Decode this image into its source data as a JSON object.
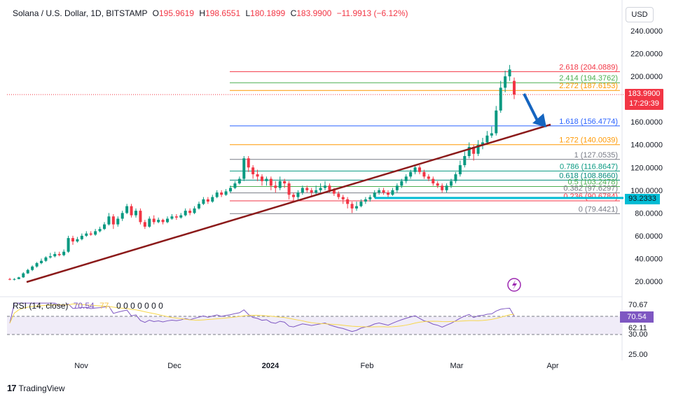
{
  "header": {
    "symbol": "Solana / U.S. Dollar, 1D, BITSTAMP",
    "o_label": "O",
    "o_value": "195.9619",
    "h_label": "H",
    "h_value": "198.6551",
    "l_label": "L",
    "l_value": "180.1899",
    "c_label": "C",
    "c_value": "183.9900",
    "change": "−11.9913 (−6.12%)"
  },
  "currency_button": "USD",
  "price_badge": {
    "price": "183.9900",
    "countdown": "17:29:39"
  },
  "cyan_badge": "93.2333",
  "rsi": {
    "label": "RSI (14, close)",
    "value": "70.54",
    "ma_value": "77.",
    "zeros": "0 0 0 0 0 0 0",
    "badge": "70.54",
    "axis_labels": [
      "70.67",
      "62.11",
      "30.00",
      "25.00"
    ]
  },
  "branding": "TradingView",
  "colors": {
    "up": "#089981",
    "down": "#f23645",
    "trend": "#8b1a1a",
    "rsi": "#7e57c2",
    "rsi_ma": "#f7d74b",
    "arrow": "#1565c0"
  },
  "chart_data": {
    "type": "candlestick",
    "title": "Solana / U.S. Dollar, 1D, BITSTAMP",
    "y_axis": {
      "min": 0,
      "max": 240,
      "scale": "linear",
      "ticks": [
        "240.0000",
        "220.0000",
        "200.0000",
        "180.0000",
        "160.0000",
        "140.0000",
        "120.0000",
        "100.0000",
        "80.0000",
        "60.0000",
        "40.0000",
        "20.0000"
      ]
    },
    "x_axis": {
      "labels": [
        "Nov",
        "Dec",
        "2024",
        "Feb",
        "Mar",
        "Apr"
      ]
    },
    "fib_levels": [
      {
        "label": "2.618 (204.0889)",
        "value": 204.0889,
        "color": "#f23645"
      },
      {
        "label": "2.414 (194.3762)",
        "value": 194.3762,
        "color": "#4caf50"
      },
      {
        "label": "2.272 (187.6153)",
        "value": 187.6153,
        "color": "#ff9800"
      },
      {
        "label": "1.618 (156.4774)",
        "value": 156.4774,
        "color": "#2962ff"
      },
      {
        "label": "1.272 (140.0039)",
        "value": 140.0039,
        "color": "#ff9800"
      },
      {
        "label": "1 (127.0535)",
        "value": 127.0535,
        "color": "#787b86"
      },
      {
        "label": "0.786 (116.8647)",
        "value": 116.8647,
        "color": "#089981"
      },
      {
        "label": "0.618 (108.8660)",
        "value": 108.866,
        "color": "#00897b"
      },
      {
        "label": "0.5 (103.2478)",
        "value": 103.2478,
        "color": "#4caf50"
      },
      {
        "label": "0.382 (97.6297)",
        "value": 97.6297,
        "color": "#787b86"
      },
      {
        "label": "0.236 (90.6784)",
        "value": 90.6784,
        "color": "#f23645"
      },
      {
        "label": "0 (79.4421)",
        "value": 79.4421,
        "color": "#787b86"
      }
    ],
    "cyan_level": 93.2333,
    "current_price": 183.99,
    "candles": [
      [
        22,
        21.5,
        23,
        21
      ],
      [
        21.5,
        22,
        22.8,
        20.8
      ],
      [
        22,
        23.5,
        24,
        21.8
      ],
      [
        23.5,
        27,
        28,
        23
      ],
      [
        27,
        30,
        31,
        26.5
      ],
      [
        30,
        33,
        34,
        29
      ],
      [
        33,
        36,
        37,
        32
      ],
      [
        36,
        38,
        40,
        35
      ],
      [
        38,
        41,
        42,
        37
      ],
      [
        41,
        42,
        45,
        40
      ],
      [
        42,
        44,
        46,
        41
      ],
      [
        44,
        43,
        46,
        42
      ],
      [
        43,
        46,
        48,
        42
      ],
      [
        46,
        58,
        60,
        45
      ],
      [
        58,
        55,
        60,
        52
      ],
      [
        55,
        57,
        59,
        54
      ],
      [
        57,
        60,
        62,
        56
      ],
      [
        60,
        62,
        64,
        59
      ],
      [
        62,
        61,
        64,
        60
      ],
      [
        61,
        64,
        66,
        60
      ],
      [
        64,
        66,
        68,
        63
      ],
      [
        66,
        70,
        72,
        65
      ],
      [
        70,
        77,
        80,
        69
      ],
      [
        77,
        70,
        79,
        66
      ],
      [
        70,
        75,
        77,
        68
      ],
      [
        75,
        80,
        82,
        73
      ],
      [
        80,
        86,
        88,
        79
      ],
      [
        86,
        78,
        88,
        76
      ],
      [
        78,
        82,
        84,
        76
      ],
      [
        82,
        72,
        84,
        70
      ],
      [
        72,
        68,
        74,
        66
      ],
      [
        68,
        75,
        77,
        67
      ],
      [
        75,
        72,
        78,
        70
      ],
      [
        72,
        74,
        76,
        71
      ],
      [
        74,
        72,
        75,
        70
      ],
      [
        72,
        75,
        77,
        71
      ],
      [
        75,
        77,
        79,
        74
      ],
      [
        77,
        76,
        79,
        74
      ],
      [
        76,
        78,
        80,
        75
      ],
      [
        78,
        82,
        84,
        77
      ],
      [
        82,
        80,
        84,
        78
      ],
      [
        80,
        84,
        86,
        79
      ],
      [
        84,
        88,
        90,
        83
      ],
      [
        88,
        92,
        94,
        87
      ],
      [
        92,
        90,
        94,
        88
      ],
      [
        90,
        94,
        96,
        89
      ],
      [
        94,
        98,
        100,
        93
      ],
      [
        98,
        96,
        100,
        94
      ],
      [
        96,
        99,
        101,
        95
      ],
      [
        99,
        102,
        104,
        98
      ],
      [
        102,
        106,
        108,
        101
      ],
      [
        106,
        110,
        112,
        105
      ],
      [
        110,
        128,
        130,
        108
      ],
      [
        128,
        120,
        130,
        116
      ],
      [
        120,
        114,
        122,
        110
      ],
      [
        114,
        112,
        118,
        108
      ],
      [
        112,
        108,
        114,
        104
      ],
      [
        108,
        110,
        112,
        104
      ],
      [
        110,
        104,
        112,
        100
      ],
      [
        104,
        102,
        108,
        98
      ],
      [
        102,
        108,
        112,
        100
      ],
      [
        108,
        106,
        110,
        102
      ],
      [
        106,
        96,
        108,
        92
      ],
      [
        96,
        94,
        98,
        90
      ],
      [
        94,
        98,
        100,
        92
      ],
      [
        98,
        102,
        104,
        96
      ],
      [
        102,
        100,
        104,
        98
      ],
      [
        100,
        98,
        102,
        94
      ],
      [
        98,
        100,
        104,
        96
      ],
      [
        100,
        102,
        106,
        98
      ],
      [
        102,
        104,
        108,
        100
      ],
      [
        104,
        100,
        106,
        98
      ],
      [
        100,
        97,
        102,
        95
      ],
      [
        97,
        94,
        99,
        92
      ],
      [
        94,
        92,
        96,
        88
      ],
      [
        92,
        88,
        94,
        84
      ],
      [
        88,
        84,
        90,
        80
      ],
      [
        84,
        86,
        90,
        82
      ],
      [
        86,
        90,
        92,
        85
      ],
      [
        90,
        92,
        94,
        88
      ],
      [
        92,
        94,
        96,
        90
      ],
      [
        94,
        98,
        100,
        93
      ],
      [
        98,
        100,
        102,
        96
      ],
      [
        100,
        98,
        102,
        96
      ],
      [
        98,
        96,
        100,
        94
      ],
      [
        96,
        100,
        102,
        95
      ],
      [
        100,
        104,
        106,
        98
      ],
      [
        104,
        108,
        110,
        102
      ],
      [
        108,
        112,
        114,
        106
      ],
      [
        112,
        116,
        118,
        110
      ],
      [
        116,
        120,
        122,
        114
      ],
      [
        120,
        116,
        122,
        114
      ],
      [
        116,
        112,
        118,
        110
      ],
      [
        112,
        110,
        114,
        108
      ],
      [
        110,
        106,
        112,
        104
      ],
      [
        106,
        104,
        108,
        102
      ],
      [
        104,
        100,
        106,
        98
      ],
      [
        100,
        104,
        106,
        98
      ],
      [
        104,
        108,
        110,
        102
      ],
      [
        108,
        114,
        116,
        106
      ],
      [
        114,
        122,
        126,
        112
      ],
      [
        122,
        130,
        134,
        120
      ],
      [
        130,
        138,
        142,
        128
      ],
      [
        138,
        132,
        140,
        126
      ],
      [
        132,
        140,
        144,
        130
      ],
      [
        140,
        142,
        146,
        136
      ],
      [
        142,
        148,
        152,
        140
      ],
      [
        148,
        150,
        156,
        146
      ],
      [
        150,
        170,
        174,
        148
      ],
      [
        170,
        190,
        196,
        168
      ],
      [
        190,
        200,
        205,
        186
      ],
      [
        200,
        206,
        210,
        196
      ],
      [
        196,
        184,
        199,
        180
      ]
    ]
  }
}
